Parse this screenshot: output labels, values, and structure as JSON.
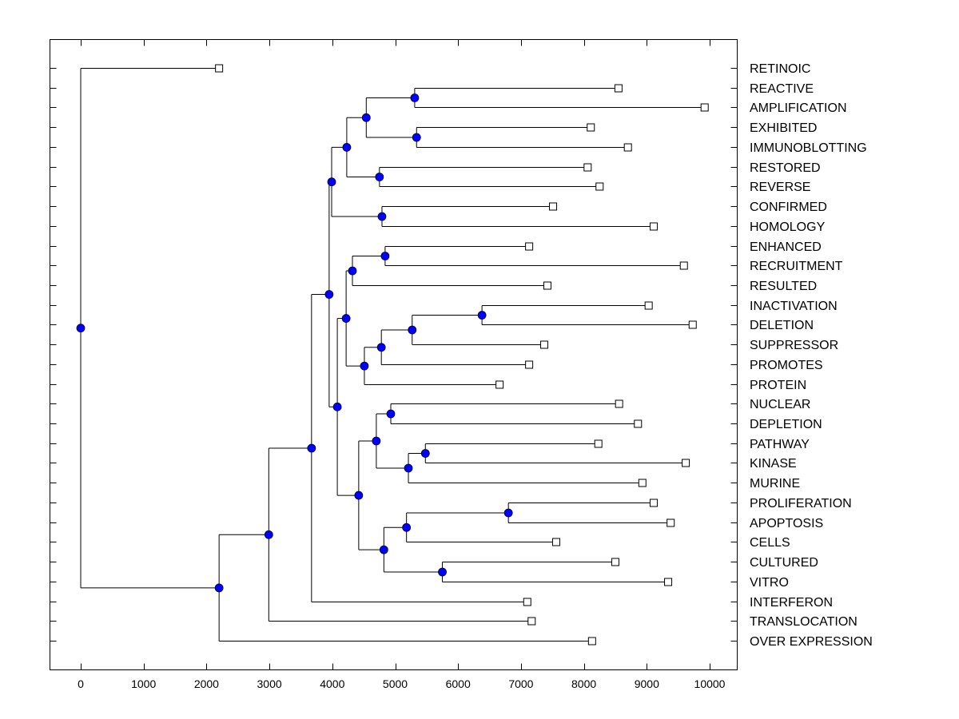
{
  "chart_data": {
    "type": "dendrogram",
    "title": "",
    "xlabel": "",
    "ylabel": "",
    "xlim": [
      -500,
      10450
    ],
    "x_ticks": [
      0,
      1000,
      2000,
      3000,
      4000,
      5000,
      6000,
      7000,
      8000,
      9000,
      10000
    ],
    "x_tick_labels": [
      "0",
      "1000",
      "2000",
      "3000",
      "4000",
      "5000",
      "6000",
      "7000",
      "8000",
      "9000",
      "10000"
    ],
    "grid": false,
    "orientation": "horizontal",
    "node_color": "#0000ff",
    "leaves": [
      {
        "label": "RETINOIC",
        "value": 2200
      },
      {
        "label": "REACTIVE",
        "value": 8550
      },
      {
        "label": "AMPLIFICATION",
        "value": 9920
      },
      {
        "label": "EXHIBITED",
        "value": 8110
      },
      {
        "label": "IMMUNOBLOTTING",
        "value": 8700
      },
      {
        "label": "RESTORED",
        "value": 8060
      },
      {
        "label": "REVERSE",
        "value": 8250
      },
      {
        "label": "CONFIRMED",
        "value": 7510
      },
      {
        "label": "HOMOLOGY",
        "value": 9110
      },
      {
        "label": "ENHANCED",
        "value": 7130
      },
      {
        "label": "RECRUITMENT",
        "value": 9590
      },
      {
        "label": "RESULTED",
        "value": 7420
      },
      {
        "label": "INACTIVATION",
        "value": 9030
      },
      {
        "label": "DELETION",
        "value": 9730
      },
      {
        "label": "SUPPRESSOR",
        "value": 7370
      },
      {
        "label": "PROMOTES",
        "value": 7130
      },
      {
        "label": "PROTEIN",
        "value": 6660
      },
      {
        "label": "NUCLEAR",
        "value": 8560
      },
      {
        "label": "DEPLETION",
        "value": 8860
      },
      {
        "label": "PATHWAY",
        "value": 8230
      },
      {
        "label": "KINASE",
        "value": 9620
      },
      {
        "label": "MURINE",
        "value": 8930
      },
      {
        "label": "PROLIFERATION",
        "value": 9110
      },
      {
        "label": "APOPTOSIS",
        "value": 9380
      },
      {
        "label": "CELLS",
        "value": 7560
      },
      {
        "label": "CULTURED",
        "value": 8500
      },
      {
        "label": "VITRO",
        "value": 9340
      },
      {
        "label": "INTERFERON",
        "value": 7100
      },
      {
        "label": "TRANSLOCATION",
        "value": 7170
      },
      {
        "label": "OVER EXPRESSION",
        "value": 8130
      }
    ],
    "tree": {
      "v": 0,
      "c": [
        0,
        {
          "v": 2200,
          "c": [
            {
              "v": 2990,
              "c": [
                {
                  "v": 3670,
                  "c": [
                    {
                      "v": 3950,
                      "c": [
                        {
                          "v": 3990,
                          "c": [
                            {
                              "v": 4230,
                              "c": [
                                {
                                  "v": 4540,
                                  "c": [
                                    {
                                      "v": 5310,
                                      "c": [
                                        1,
                                        2
                                      ]
                                    },
                                    {
                                      "v": 5340,
                                      "c": [
                                        3,
                                        4
                                      ]
                                    }
                                  ]
                                },
                                {
                                  "v": 4750,
                                  "c": [
                                    5,
                                    6
                                  ]
                                }
                              ]
                            },
                            {
                              "v": 4790,
                              "c": [
                                7,
                                8
                              ]
                            }
                          ]
                        },
                        {
                          "v": 4080,
                          "c": [
                            {
                              "v": 4220,
                              "c": [
                                {
                                  "v": 4320,
                                  "c": [
                                    {
                                      "v": 4840,
                                      "c": [
                                        9,
                                        10
                                      ]
                                    },
                                    11
                                  ]
                                },
                                {
                                  "v": 4510,
                                  "c": [
                                    {
                                      "v": 4780,
                                      "c": [
                                        {
                                          "v": 5270,
                                          "c": [
                                            {
                                              "v": 6380,
                                              "c": [
                                                12,
                                                13
                                              ]
                                            },
                                            14
                                          ]
                                        },
                                        15
                                      ]
                                    },
                                    16
                                  ]
                                }
                              ]
                            },
                            {
                              "v": 4420,
                              "c": [
                                {
                                  "v": 4700,
                                  "c": [
                                    {
                                      "v": 4930,
                                      "c": [
                                        17,
                                        18
                                      ]
                                    },
                                    {
                                      "v": 5210,
                                      "c": [
                                        {
                                          "v": 5480,
                                          "c": [
                                            19,
                                            20
                                          ]
                                        },
                                        21
                                      ]
                                    }
                                  ]
                                },
                                {
                                  "v": 4820,
                                  "c": [
                                    {
                                      "v": 5180,
                                      "c": [
                                        {
                                          "v": 6800,
                                          "c": [
                                            22,
                                            23
                                          ]
                                        },
                                        24
                                      ]
                                    },
                                    {
                                      "v": 5750,
                                      "c": [
                                        25,
                                        26
                                      ]
                                    }
                                  ]
                                }
                              ]
                            }
                          ]
                        }
                      ]
                    },
                    27
                  ]
                },
                28
              ]
            },
            29
          ]
        }
      ]
    }
  }
}
